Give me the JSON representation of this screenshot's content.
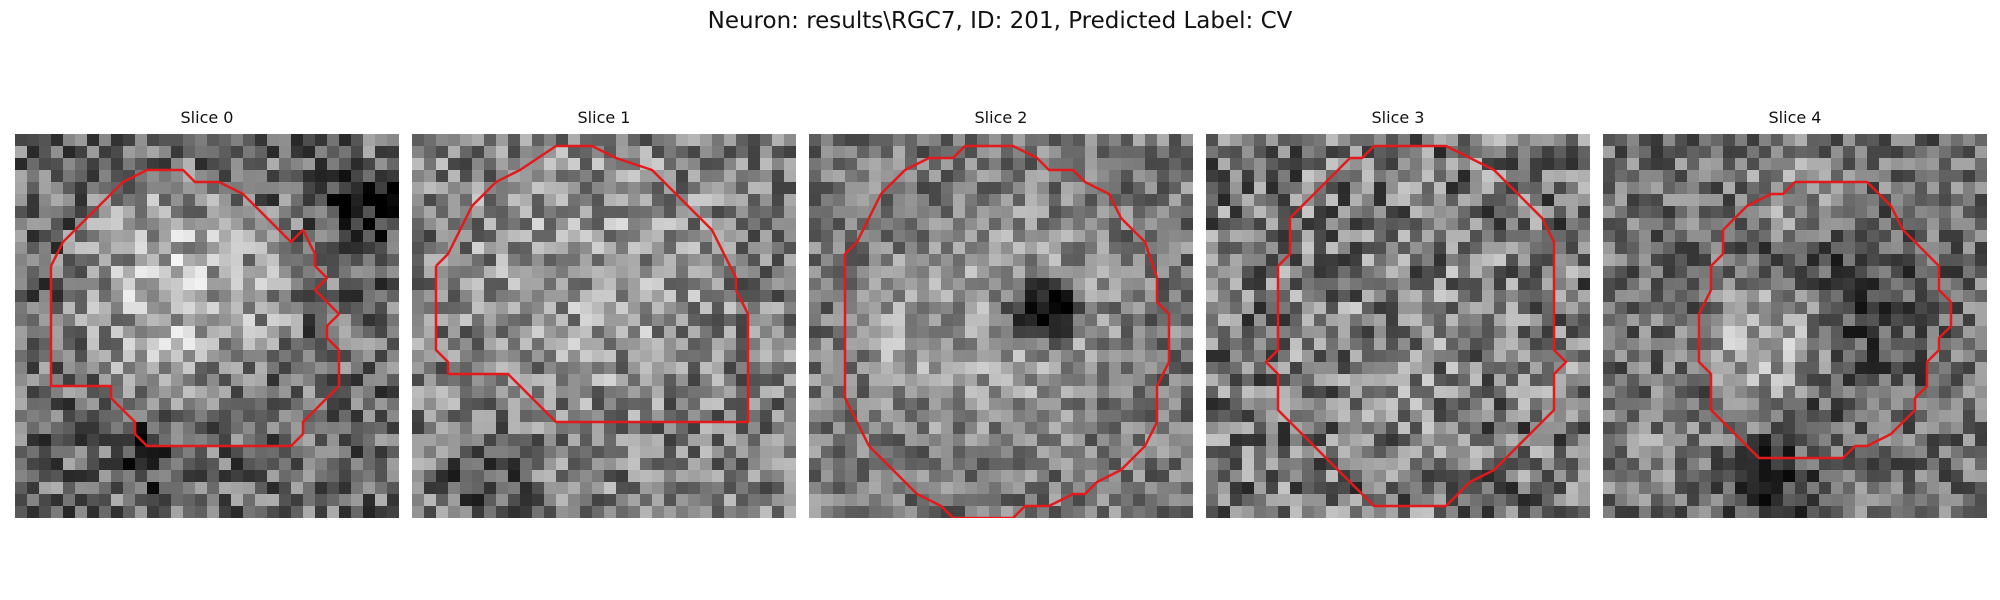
{
  "figure": {
    "title": "Neuron: results\\RGC7, ID: 201, Predicted Label: CV"
  },
  "contour_color": "#e31a1c",
  "colormap": "gray",
  "slices": [
    {
      "label": "Slice 0"
    },
    {
      "label": "Slice 1"
    },
    {
      "label": "Slice 2"
    },
    {
      "label": "Slice 3"
    },
    {
      "label": "Slice 4"
    }
  ]
}
